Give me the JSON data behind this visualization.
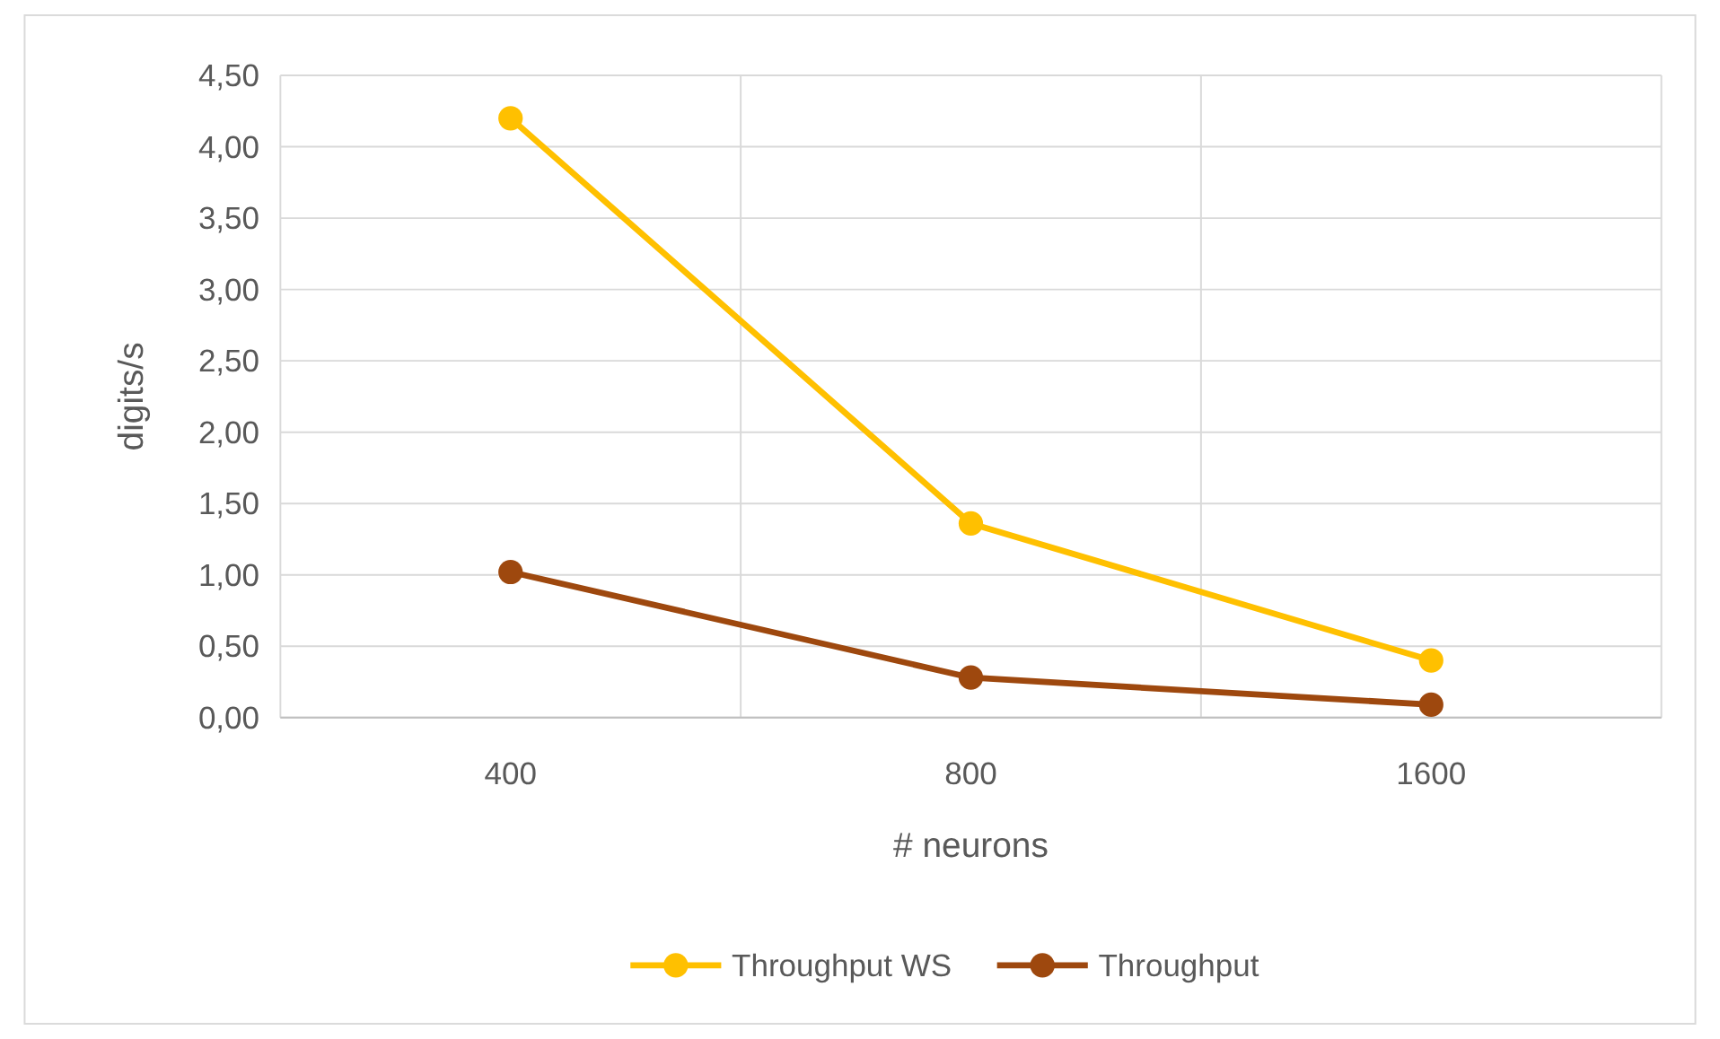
{
  "chart_data": {
    "type": "line",
    "xlabel": "# neurons",
    "ylabel": "digits/s",
    "categories": [
      "400",
      "800",
      "1600"
    ],
    "series": [
      {
        "name": "Throughput WS",
        "color": "#ffc000",
        "values": [
          4.2,
          1.36,
          0.4
        ]
      },
      {
        "name": "Throughput",
        "color": "#9e480e",
        "values": [
          1.02,
          0.28,
          0.09
        ]
      }
    ],
    "ylim": [
      0,
      4.5
    ],
    "yticks": [
      {
        "value": 0,
        "label": "0,00"
      },
      {
        "value": 0.5,
        "label": "0,50"
      },
      {
        "value": 1,
        "label": "1,00"
      },
      {
        "value": 1.5,
        "label": "1,50"
      },
      {
        "value": 2,
        "label": "2,00"
      },
      {
        "value": 2.5,
        "label": "2,50"
      },
      {
        "value": 3,
        "label": "3,00"
      },
      {
        "value": 3.5,
        "label": "3,50"
      },
      {
        "value": 4,
        "label": "4,00"
      },
      {
        "value": 4.5,
        "label": "4,50"
      }
    ],
    "grid": true,
    "legend": "bottom",
    "marker": "circle",
    "line_style": "solid"
  }
}
